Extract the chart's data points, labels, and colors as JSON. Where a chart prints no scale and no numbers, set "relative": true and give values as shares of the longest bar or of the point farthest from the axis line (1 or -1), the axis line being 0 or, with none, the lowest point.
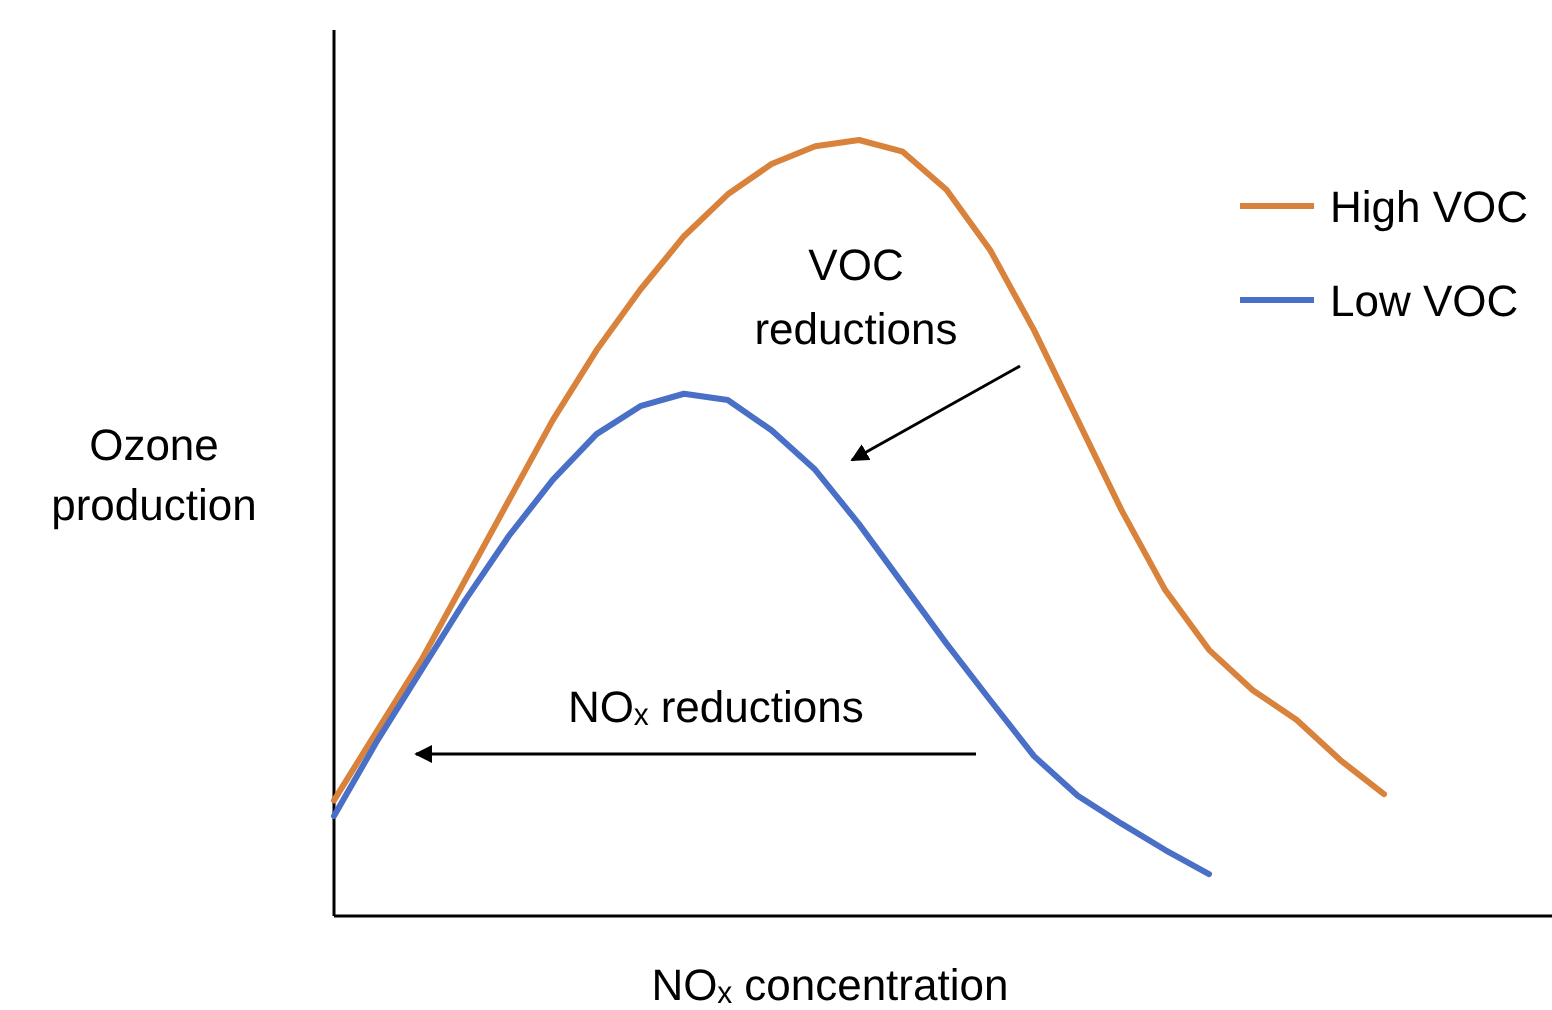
{
  "chart_data": {
    "type": "line",
    "relative": true,
    "xlabel": "NOₓ concentration",
    "ylabel": "Ozone production",
    "legend": "top right",
    "marker": "none",
    "line_style": "solid",
    "categories": [
      null,
      null,
      null,
      null,
      null,
      null,
      null,
      null,
      null,
      null,
      null,
      null,
      null,
      null,
      null,
      null,
      null,
      null,
      null,
      null,
      null,
      null,
      null,
      null,
      null
    ],
    "series": [
      {
        "name": "High VOC",
        "color": "#d9823b",
        "values": [
          0.149,
          0.24,
          0.33,
          0.433,
          0.536,
          0.639,
          0.729,
          0.807,
          0.876,
          0.93,
          0.969,
          0.992,
          1,
          0.985,
          0.936,
          0.858,
          0.755,
          0.639,
          0.523,
          0.42,
          0.343,
          0.291,
          0.253,
          0.201,
          0.157
        ]
      },
      {
        "name": "Low VOC",
        "color": "#4a6fc7",
        "values": [
          0.129,
          0.227,
          0.317,
          0.407,
          0.49,
          0.562,
          0.621,
          0.657,
          0.673,
          0.665,
          0.626,
          0.575,
          0.505,
          0.428,
          0.351,
          0.278,
          0.206,
          0.155,
          0.119,
          0.085,
          0.054,
          null,
          null,
          null,
          null
        ]
      }
    ],
    "annotations": [
      "VOC reductions",
      "NOₓ reductions"
    ]
  }
}
